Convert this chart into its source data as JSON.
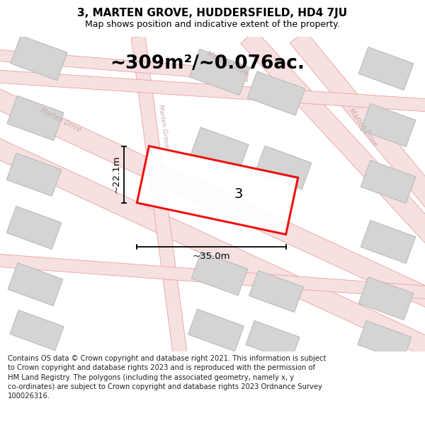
{
  "title": "3, MARTEN GROVE, HUDDERSFIELD, HD4 7JU",
  "subtitle": "Map shows position and indicative extent of the property.",
  "area_text": "~309m²/~0.076ac.",
  "label_number": "3",
  "dim_width": "~35.0m",
  "dim_height": "~22.1m",
  "footer": "Contains OS data © Crown copyright and database right 2021. This information is subject to Crown copyright and database rights 2023 and is reproduced with the permission of HM Land Registry. The polygons (including the associated geometry, namely x, y co-ordinates) are subject to Crown copyright and database rights 2023 Ordnance Survey 100026316.",
  "bg_color": "#f2f2f2",
  "road_line_color": "#e8a0a0",
  "road_fill_color": "#f7e0e0",
  "building_fill": "#d4d4d4",
  "building_edge": "#bbbbbb",
  "road_label_color": "#c8a8a8",
  "plot_color": "#ee0000",
  "title_fontsize": 11,
  "subtitle_fontsize": 9,
  "area_fontsize": 19,
  "label_fontsize": 14,
  "dim_fontsize": 9.5,
  "footer_fontsize": 7.2,
  "footer_text_color": "#222222"
}
